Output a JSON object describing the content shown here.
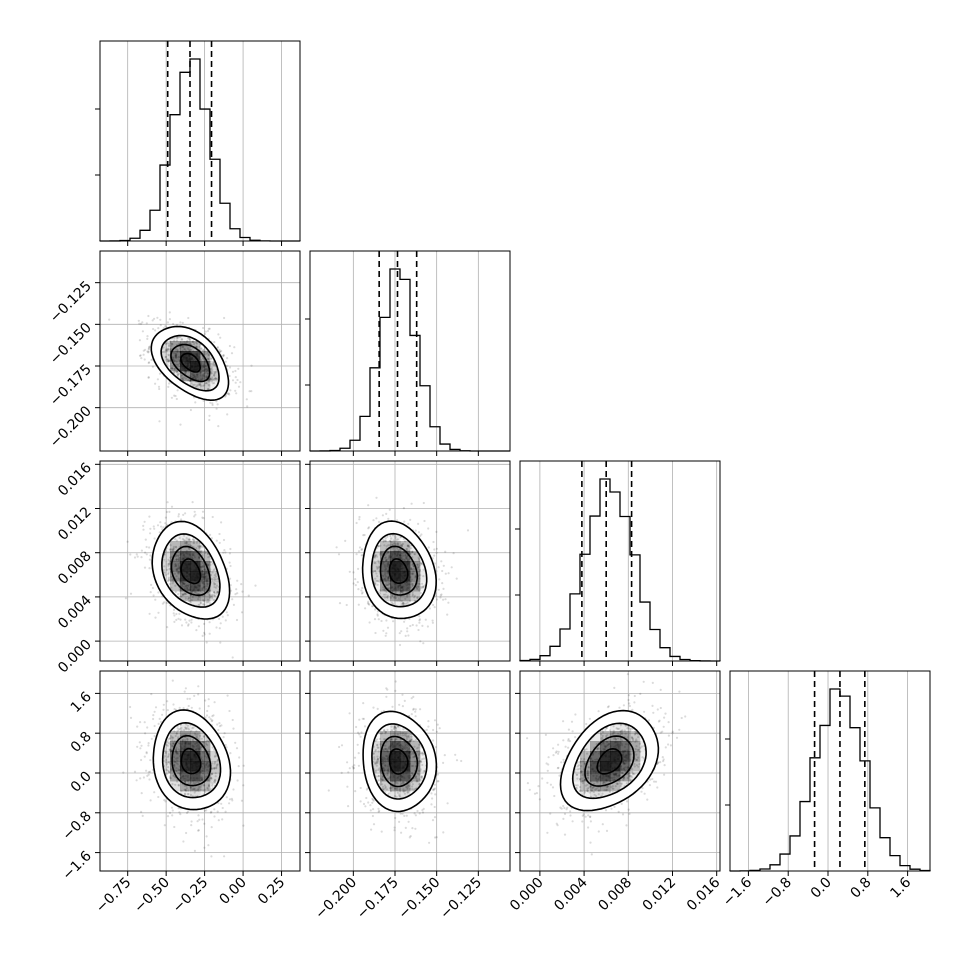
{
  "chart_data": {
    "type": "corner",
    "grid": true,
    "parameters": [
      {
        "index": 0,
        "range": [
          -0.93,
          0.37
        ],
        "ticks": [
          "−0.75",
          "−0.50",
          "−0.25",
          "0.00",
          "0.25"
        ],
        "tick_values": [
          -0.75,
          -0.5,
          -0.25,
          0.0,
          0.25
        ],
        "mean": -0.34,
        "sigma": 0.125,
        "quantiles": [
          -0.49,
          -0.345,
          -0.205
        ]
      },
      {
        "index": 1,
        "range": [
          -0.226,
          -0.106
        ],
        "ticks": [
          "−0.200",
          "−0.175",
          "−0.150",
          "−0.125"
        ],
        "tick_values": [
          -0.2,
          -0.175,
          -0.15,
          -0.125
        ],
        "mean": -0.173,
        "sigma": 0.011,
        "quantiles": [
          -0.1845,
          -0.1735,
          -0.162
        ]
      },
      {
        "index": 2,
        "range": [
          -0.0018,
          0.0163
        ],
        "ticks": [
          "0.000",
          "0.004",
          "0.008",
          "0.012",
          "0.016"
        ],
        "tick_values": [
          0.0,
          0.004,
          0.008,
          0.012,
          0.016
        ],
        "mean": 0.0063,
        "sigma": 0.0022,
        "quantiles": [
          0.0038,
          0.006,
          0.0083
        ]
      },
      {
        "index": 3,
        "range": [
          -1.97,
          2.05
        ],
        "ticks": [
          "−1.6",
          "−0.8",
          "0.0",
          "0.8",
          "1.6"
        ],
        "tick_values": [
          -1.6,
          -0.8,
          0.0,
          0.8,
          1.6
        ],
        "mean": 0.23,
        "sigma": 0.5,
        "quantiles": [
          -0.27,
          0.24,
          0.74
        ]
      }
    ],
    "correlations": {
      "1_0": -0.45,
      "2_0": -0.3,
      "2_1": -0.15,
      "3_0": -0.15,
      "3_1": -0.1,
      "3_2": 0.35
    },
    "contour_levels_sigma": [
      0.5,
      1.0,
      1.5,
      2.0
    ],
    "quantile_linestyle": "dashed",
    "colors": {
      "ink": "#000000",
      "grid": "#b0b0b0",
      "density": "#000000"
    }
  }
}
